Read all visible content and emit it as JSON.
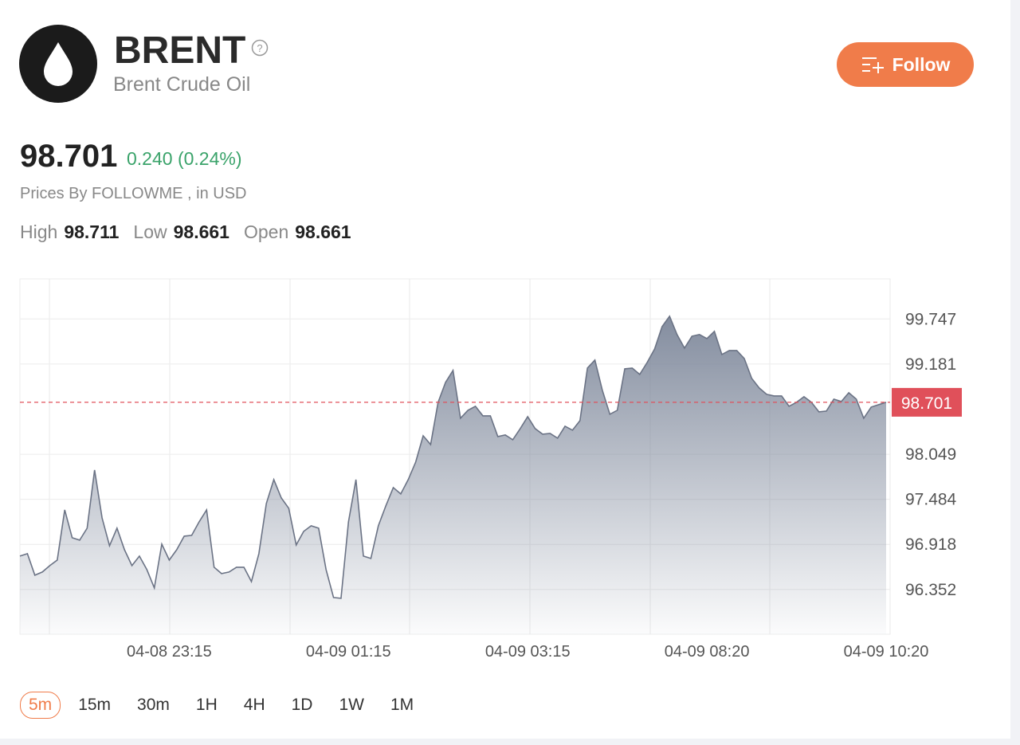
{
  "header": {
    "symbol": "BRENT",
    "name": "Brent Crude Oil",
    "follow": "Follow"
  },
  "quote": {
    "price": "98.701",
    "change": "0.240 (0.24%)",
    "source": "Prices By FOLLOWME , in USD",
    "stats": [
      {
        "label": "High",
        "value": "98.711"
      },
      {
        "label": "Low",
        "value": "98.661"
      },
      {
        "label": "Open",
        "value": "98.661"
      }
    ]
  },
  "chart_data": {
    "type": "area",
    "color": "#6b7385",
    "current": 98.701,
    "current_color": "#e0505a",
    "ylim": [
      95.79,
      100.25
    ],
    "yticks": [
      96.352,
      96.918,
      97.484,
      98.049,
      99.181,
      99.747
    ],
    "grid": true,
    "categories": [
      null,
      null,
      null,
      null,
      null,
      null,
      null,
      null,
      null,
      null,
      null,
      null,
      null,
      null,
      null,
      null,
      null,
      null,
      null,
      null,
      "04-08 23:15",
      null,
      null,
      null,
      null,
      null,
      null,
      null,
      null,
      null,
      null,
      null,
      null,
      null,
      null,
      null,
      null,
      null,
      null,
      null,
      null,
      null,
      null,
      null,
      "04-09 01:15",
      null,
      null,
      null,
      null,
      null,
      null,
      null,
      null,
      null,
      null,
      null,
      null,
      null,
      null,
      null,
      null,
      null,
      null,
      null,
      null,
      null,
      null,
      null,
      "04-09 03:15",
      null,
      null,
      null,
      null,
      null,
      null,
      null,
      null,
      null,
      null,
      null,
      null,
      null,
      null,
      null,
      null,
      null,
      null,
      null,
      null,
      null,
      null,
      null,
      "04-09 08:20",
      null,
      null,
      null,
      null,
      null,
      null,
      null,
      null,
      null,
      null,
      null,
      null,
      null,
      null,
      null,
      null,
      null,
      null,
      null,
      null,
      null,
      null,
      null,
      "04-09 10:20"
    ],
    "values": [
      96.771,
      96.801,
      96.531,
      96.571,
      96.651,
      96.721,
      97.351,
      97.001,
      96.971,
      97.121,
      97.851,
      97.251,
      96.901,
      97.121,
      96.851,
      96.651,
      96.771,
      96.601,
      96.371,
      96.921,
      96.721,
      96.851,
      97.021,
      97.031,
      97.201,
      97.351,
      96.631,
      96.551,
      96.571,
      96.631,
      96.631,
      96.451,
      96.801,
      97.431,
      97.731,
      97.501,
      97.371,
      96.911,
      97.081,
      97.151,
      97.121,
      96.601,
      96.251,
      96.241,
      97.201,
      97.731,
      96.771,
      96.741,
      97.151,
      97.401,
      97.631,
      97.551,
      97.731,
      97.951,
      98.281,
      98.171,
      98.701,
      98.951,
      99.101,
      98.501,
      98.601,
      98.651,
      98.531,
      98.531,
      98.271,
      98.291,
      98.231,
      98.371,
      98.521,
      98.371,
      98.301,
      98.311,
      98.251,
      98.401,
      98.351,
      98.471,
      99.131,
      99.231,
      98.851,
      98.551,
      98.601,
      99.121,
      99.131,
      99.051,
      99.201,
      99.371,
      99.651,
      99.781,
      99.551,
      99.381,
      99.531,
      99.551,
      99.501,
      99.591,
      99.301,
      99.351,
      99.351,
      99.251,
      99.001,
      98.881,
      98.801,
      98.781,
      98.781,
      98.651,
      98.701,
      98.771,
      98.701,
      98.581,
      98.591,
      98.741,
      98.711,
      98.821,
      98.741,
      98.501,
      98.641,
      98.671,
      98.701
    ]
  },
  "ranges": {
    "items": [
      "5m",
      "15m",
      "30m",
      "1H",
      "4H",
      "1D",
      "1W",
      "1M"
    ],
    "selected": 0
  }
}
